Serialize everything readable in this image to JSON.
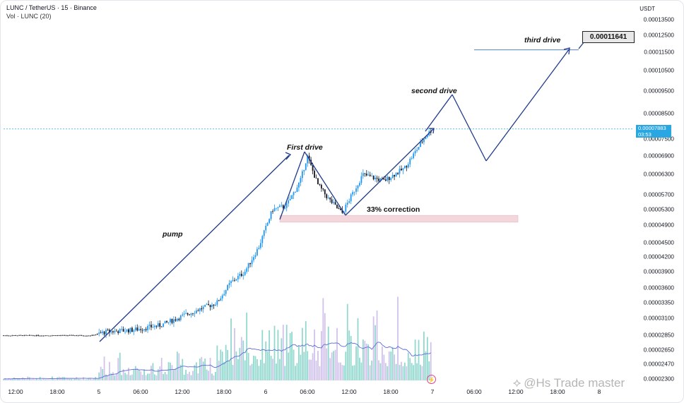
{
  "header": {
    "symbol_line": "LUNC / TetherUS · 15 · Binance",
    "volume_line": "Vol · LUNC (20)"
  },
  "colors": {
    "up_candle": "#26a69a",
    "down_candle": "#131722",
    "candle_blue": "#2196f3",
    "volume_up": "#7fd1c6",
    "volume_down": "#c9b8e8",
    "volume_ma": "#5b6bd8",
    "drawing": "#1e3a8a",
    "price_line": "#2aa7e3",
    "correction_zone": "#f3d7dc"
  },
  "chart_data": {
    "type": "candlestick",
    "symbol": "LUNC / TetherUS",
    "interval": "15",
    "exchange": "Binance",
    "y_unit": "USDT",
    "y_scale": "log",
    "y_ticks": [
      "0.00013500",
      "0.00012500",
      "0.00011500",
      "0.00010500",
      "0.00009500",
      "0.00008500",
      "0.00007500",
      "0.00006900",
      "0.00006300",
      "0.00005700",
      "0.00005300",
      "0.00004900",
      "0.00004500",
      "0.00004200",
      "0.00003900",
      "0.00003600",
      "0.00003350",
      "0.00003100",
      "0.00002850",
      "0.00002650",
      "0.00002470",
      "0.00002300"
    ],
    "x_ticks": [
      "6:00",
      "12:00",
      "18:00",
      "5",
      "06:00",
      "12:00",
      "18:00",
      "6",
      "06:00",
      "12:00",
      "18:00",
      "7",
      "06:00",
      "12:00",
      "18:00",
      "8"
    ],
    "current_price": "0.00007883",
    "countdown": "03:53",
    "price_path": [
      {
        "time": "day4 00:00",
        "price": 2.85e-05
      },
      {
        "time": "day4 18:00",
        "price": 2.85e-05
      },
      {
        "time": "day4 20:00",
        "price": 2.9e-05
      },
      {
        "time": "day5 00:00",
        "price": 2.93e-05
      },
      {
        "time": "day5 04:00",
        "price": 3e-05
      },
      {
        "time": "day5 08:00",
        "price": 3.18e-05
      },
      {
        "time": "day5 12:00",
        "price": 3.35e-05
      },
      {
        "time": "day5 14:00",
        "price": 3.7e-05
      },
      {
        "time": "day5 16:00",
        "price": 3.9e-05
      },
      {
        "time": "day5 18:00",
        "price": 4.4e-05
      },
      {
        "time": "day5 20:00",
        "price": 5.3e-05
      },
      {
        "time": "day5 22:00",
        "price": 5.4e-05
      },
      {
        "time": "day6 00:00",
        "price": 6.1e-05
      },
      {
        "time": "day6 01:00",
        "price": 6.9e-05
      },
      {
        "time": "day6 02:30",
        "price": 6e-05
      },
      {
        "time": "day6 04:00",
        "price": 5.6e-05
      },
      {
        "time": "day6 06:00",
        "price": 5.2e-05
      },
      {
        "time": "day6 09:00",
        "price": 6.3e-05
      },
      {
        "time": "day6 12:00",
        "price": 6.1e-05
      },
      {
        "time": "day6 15:00",
        "price": 6.5e-05
      },
      {
        "time": "day6 18:00",
        "price": 7.6e-05
      },
      {
        "time": "day6 19:00",
        "price": 7.88e-05
      }
    ],
    "annotations": {
      "pump": "pump",
      "first_drive": "First drive",
      "correction": "33% correction",
      "second_drive": "second drive",
      "third_drive": "third drive",
      "target_price": "0.00011641"
    },
    "volume_ma_period": 20
  },
  "watermark": "@Hs Trade master"
}
